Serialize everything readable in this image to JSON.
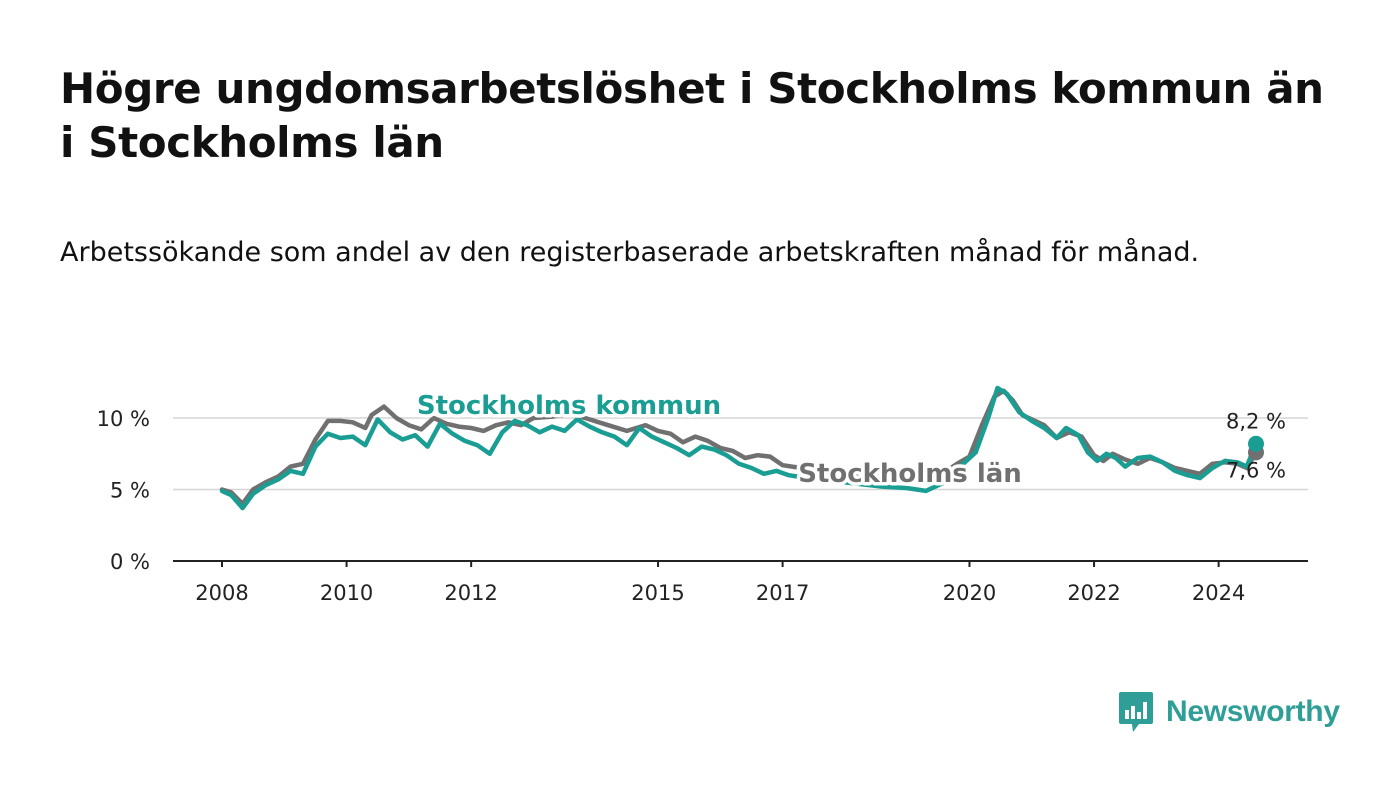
{
  "header": {
    "title": "Högre ungdomsarbetslöshet i Stockholms kommun än i Stockholms län",
    "subtitle": "Arbetssökande som andel av den registerbaserade arbetskraften månad för månad."
  },
  "brand": {
    "name": "Newsworthy",
    "color": "#2f9e96"
  },
  "chart_data": {
    "type": "line",
    "title": "Högre ungdomsarbetslöshet i Stockholms kommun än i Stockholms län",
    "subtitle": "Arbetssökande som andel av den registerbaserade arbetskraften månad för månad.",
    "xlabel": "",
    "ylabel": "",
    "xlim": [
      2008,
      2024.6
    ],
    "ylim": [
      0,
      12.5
    ],
    "x_ticks": [
      2008,
      2010,
      2012,
      2015,
      2017,
      2020,
      2022,
      2024
    ],
    "x_tick_labels": [
      "2008",
      "2010",
      "2012",
      "2015",
      "2017",
      "2020",
      "2022",
      "2024"
    ],
    "y_ticks": [
      0,
      5,
      10
    ],
    "y_tick_labels": [
      "0 %",
      "5 %",
      "10 %"
    ],
    "grid": true,
    "series": [
      {
        "name": "Stockholms län",
        "color": "#707070",
        "end_label": "7,6 %",
        "points": [
          [
            2008.0,
            5.0
          ],
          [
            2008.15,
            4.8
          ],
          [
            2008.33,
            4.0
          ],
          [
            2008.5,
            5.0
          ],
          [
            2008.7,
            5.5
          ],
          [
            2008.9,
            5.9
          ],
          [
            2009.1,
            6.6
          ],
          [
            2009.3,
            6.8
          ],
          [
            2009.5,
            8.5
          ],
          [
            2009.7,
            9.8
          ],
          [
            2009.9,
            9.8
          ],
          [
            2010.1,
            9.7
          ],
          [
            2010.3,
            9.3
          ],
          [
            2010.4,
            10.2
          ],
          [
            2010.6,
            10.8
          ],
          [
            2010.8,
            10.0
          ],
          [
            2011.0,
            9.5
          ],
          [
            2011.2,
            9.2
          ],
          [
            2011.4,
            10.0
          ],
          [
            2011.6,
            9.6
          ],
          [
            2011.8,
            9.4
          ],
          [
            2012.0,
            9.3
          ],
          [
            2012.2,
            9.1
          ],
          [
            2012.4,
            9.5
          ],
          [
            2012.6,
            9.7
          ],
          [
            2012.8,
            9.5
          ],
          [
            2013.0,
            10.0
          ],
          [
            2013.3,
            10.1
          ],
          [
            2013.6,
            10.3
          ],
          [
            2013.9,
            9.9
          ],
          [
            2014.2,
            9.5
          ],
          [
            2014.5,
            9.1
          ],
          [
            2014.8,
            9.5
          ],
          [
            2015.0,
            9.1
          ],
          [
            2015.2,
            8.9
          ],
          [
            2015.4,
            8.3
          ],
          [
            2015.6,
            8.7
          ],
          [
            2015.8,
            8.4
          ],
          [
            2016.0,
            7.9
          ],
          [
            2016.2,
            7.7
          ],
          [
            2016.4,
            7.2
          ],
          [
            2016.6,
            7.4
          ],
          [
            2016.8,
            7.3
          ],
          [
            2017.0,
            6.7
          ],
          [
            2017.3,
            6.5
          ],
          [
            2017.6,
            6.5
          ],
          [
            2018.0,
            6.2
          ],
          [
            2018.4,
            6.0
          ],
          [
            2018.8,
            5.8
          ],
          [
            2019.2,
            5.6
          ],
          [
            2019.5,
            5.9
          ],
          [
            2019.8,
            6.8
          ],
          [
            2020.0,
            7.3
          ],
          [
            2020.2,
            9.5
          ],
          [
            2020.4,
            11.5
          ],
          [
            2020.55,
            11.9
          ],
          [
            2020.7,
            11.2
          ],
          [
            2020.85,
            10.2
          ],
          [
            2021.0,
            9.9
          ],
          [
            2021.2,
            9.5
          ],
          [
            2021.4,
            8.6
          ],
          [
            2021.6,
            9.0
          ],
          [
            2021.8,
            8.7
          ],
          [
            2022.0,
            7.4
          ],
          [
            2022.15,
            7.0
          ],
          [
            2022.3,
            7.5
          ],
          [
            2022.5,
            7.1
          ],
          [
            2022.7,
            6.8
          ],
          [
            2022.9,
            7.2
          ],
          [
            2023.1,
            6.9
          ],
          [
            2023.3,
            6.5
          ],
          [
            2023.5,
            6.3
          ],
          [
            2023.7,
            6.1
          ],
          [
            2023.9,
            6.8
          ],
          [
            2024.1,
            6.9
          ],
          [
            2024.3,
            6.8
          ],
          [
            2024.45,
            6.5
          ],
          [
            2024.6,
            7.6
          ]
        ]
      },
      {
        "name": "Stockholms kommun",
        "color": "#1a9e94",
        "end_label": "8,2 %",
        "points": [
          [
            2008.0,
            4.9
          ],
          [
            2008.15,
            4.6
          ],
          [
            2008.33,
            3.7
          ],
          [
            2008.5,
            4.7
          ],
          [
            2008.7,
            5.3
          ],
          [
            2008.9,
            5.7
          ],
          [
            2009.1,
            6.3
          ],
          [
            2009.3,
            6.1
          ],
          [
            2009.5,
            8.0
          ],
          [
            2009.7,
            8.9
          ],
          [
            2009.9,
            8.6
          ],
          [
            2010.1,
            8.7
          ],
          [
            2010.3,
            8.1
          ],
          [
            2010.5,
            9.9
          ],
          [
            2010.7,
            9.0
          ],
          [
            2010.9,
            8.5
          ],
          [
            2011.1,
            8.8
          ],
          [
            2011.3,
            8.0
          ],
          [
            2011.5,
            9.6
          ],
          [
            2011.7,
            8.9
          ],
          [
            2011.9,
            8.4
          ],
          [
            2012.1,
            8.1
          ],
          [
            2012.3,
            7.5
          ],
          [
            2012.5,
            9.0
          ],
          [
            2012.7,
            9.8
          ],
          [
            2012.9,
            9.5
          ],
          [
            2013.1,
            9.0
          ],
          [
            2013.3,
            9.4
          ],
          [
            2013.5,
            9.1
          ],
          [
            2013.7,
            9.9
          ],
          [
            2013.9,
            9.4
          ],
          [
            2014.1,
            9.0
          ],
          [
            2014.3,
            8.7
          ],
          [
            2014.5,
            8.1
          ],
          [
            2014.7,
            9.3
          ],
          [
            2014.9,
            8.7
          ],
          [
            2015.1,
            8.3
          ],
          [
            2015.3,
            7.9
          ],
          [
            2015.5,
            7.4
          ],
          [
            2015.7,
            8.0
          ],
          [
            2015.9,
            7.8
          ],
          [
            2016.1,
            7.4
          ],
          [
            2016.3,
            6.8
          ],
          [
            2016.5,
            6.5
          ],
          [
            2016.7,
            6.1
          ],
          [
            2016.9,
            6.3
          ],
          [
            2017.1,
            6.0
          ],
          [
            2017.4,
            5.8
          ],
          [
            2017.8,
            5.6
          ],
          [
            2018.2,
            5.4
          ],
          [
            2018.6,
            5.2
          ],
          [
            2019.0,
            5.1
          ],
          [
            2019.3,
            4.9
          ],
          [
            2019.6,
            5.5
          ],
          [
            2019.9,
            6.8
          ],
          [
            2020.1,
            7.6
          ],
          [
            2020.3,
            10.0
          ],
          [
            2020.45,
            12.1
          ],
          [
            2020.6,
            11.7
          ],
          [
            2020.8,
            10.4
          ],
          [
            2021.0,
            9.8
          ],
          [
            2021.2,
            9.3
          ],
          [
            2021.4,
            8.6
          ],
          [
            2021.55,
            9.3
          ],
          [
            2021.75,
            8.8
          ],
          [
            2021.9,
            7.6
          ],
          [
            2022.05,
            7.0
          ],
          [
            2022.2,
            7.5
          ],
          [
            2022.35,
            7.2
          ],
          [
            2022.5,
            6.6
          ],
          [
            2022.7,
            7.2
          ],
          [
            2022.9,
            7.3
          ],
          [
            2023.1,
            6.9
          ],
          [
            2023.3,
            6.3
          ],
          [
            2023.5,
            6.0
          ],
          [
            2023.7,
            5.8
          ],
          [
            2023.9,
            6.5
          ],
          [
            2024.1,
            7.0
          ],
          [
            2024.3,
            6.9
          ],
          [
            2024.45,
            6.6
          ],
          [
            2024.6,
            8.2
          ]
        ]
      }
    ],
    "annotations": [
      {
        "text": "Stockholms kommun",
        "series": "Stockholms kommun"
      },
      {
        "text": "Stockholms län",
        "series": "Stockholms län"
      }
    ]
  }
}
